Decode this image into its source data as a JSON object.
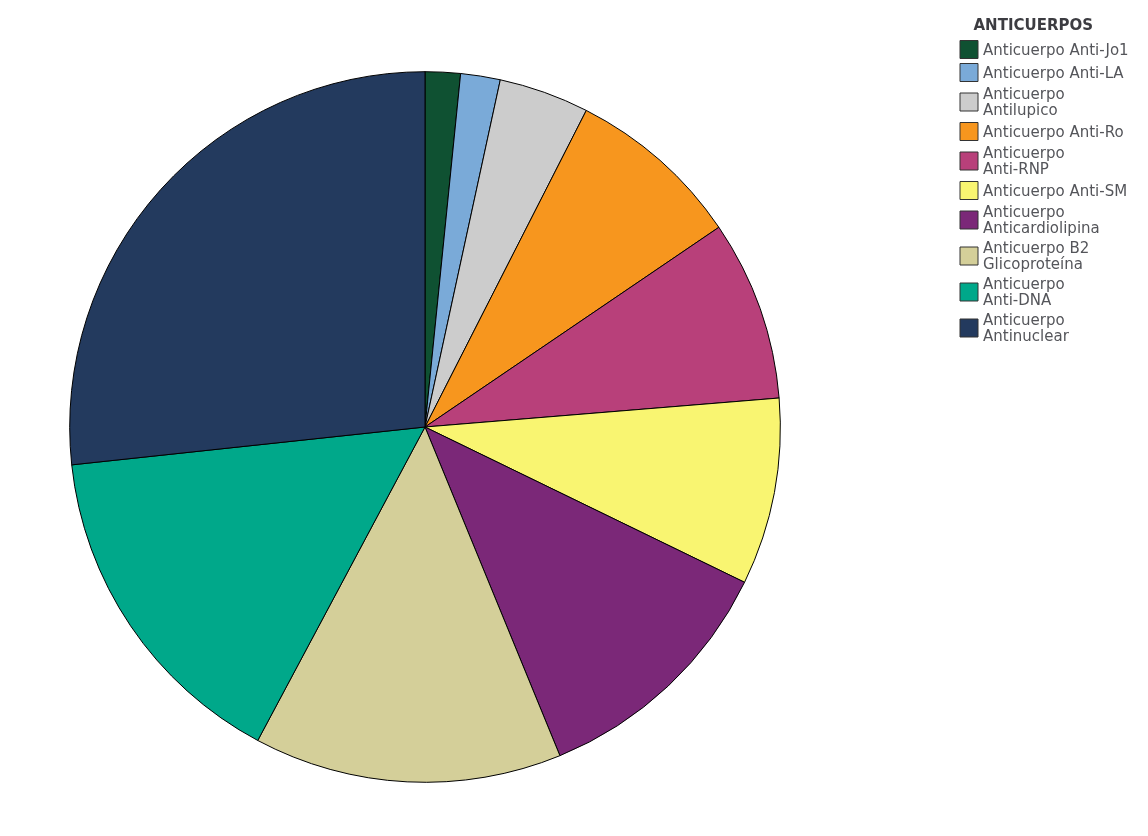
{
  "chart_data": {
    "type": "pie",
    "legend_title": "ANTICUERPOS",
    "legend": "top right",
    "categories": [
      "Anticuerpo Anti-Jo1",
      "Anticuerpo Anti-LA",
      "Anticuerpo Antilupico",
      "Anticuerpo Anti-Ro",
      "Anticuerpo Anti-RNP",
      "Anticuerpo Anti-SM",
      "Anticuerpo Anticardiolipina",
      "Anticuerpo B2 Glicoproteína",
      "Anticuerpo Anti-DNA",
      "Anticuerpo Antinuclear"
    ],
    "values": [
      1.6,
      1.8,
      4.1,
      8.0,
      8.2,
      8.5,
      11.6,
      14.0,
      15.5,
      26.7
    ],
    "colors": [
      "#0f5132",
      "#7aaad8",
      "#cccccc",
      "#f7961e",
      "#b8407a",
      "#f9f571",
      "#7b2878",
      "#d4cf99",
      "#00a88a",
      "#233a5e"
    ]
  }
}
